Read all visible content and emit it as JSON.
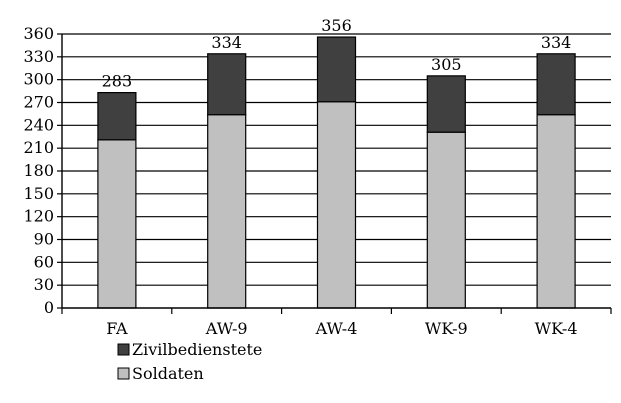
{
  "chart_data": {
    "type": "bar",
    "stacked": true,
    "categories": [
      "FA",
      "AW-9",
      "AW-4",
      "WK-9",
      "WK-4"
    ],
    "series": [
      {
        "name": "Soldaten",
        "values": [
          221,
          254,
          271,
          231,
          254
        ],
        "color": "#c0c0c0"
      },
      {
        "name": "Zivilbedienstete",
        "values": [
          62,
          80,
          85,
          74,
          80
        ],
        "color": "#404040"
      }
    ],
    "totals": [
      283,
      334,
      356,
      305,
      334
    ],
    "total_labels": [
      "283",
      "334",
      "356",
      "305",
      "334"
    ],
    "y_ticks": [
      "0",
      "30",
      "60",
      "90",
      "120",
      "150",
      "180",
      "210",
      "240",
      "270",
      "300",
      "330",
      "360"
    ],
    "ylim": [
      0,
      360
    ],
    "y_step": 30,
    "grid": true,
    "legend_placement": "bottom-left",
    "legend_order": [
      "Zivilbedienstete",
      "Soldaten"
    ]
  }
}
